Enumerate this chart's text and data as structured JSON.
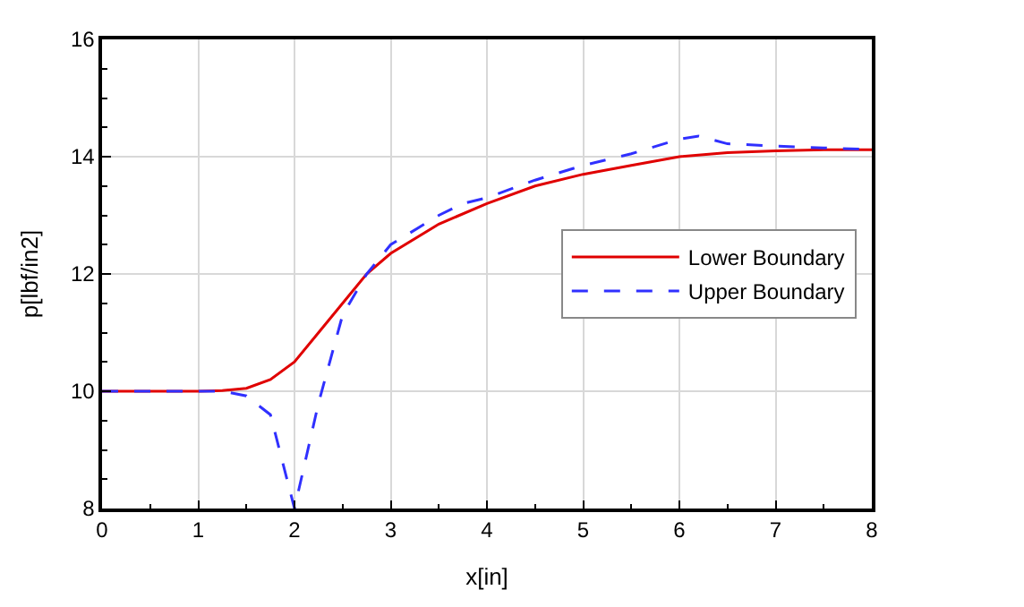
{
  "chart_data": {
    "type": "line",
    "xlabel": "x[in]",
    "ylabel": "p[lbf/in2]",
    "xlim": [
      0,
      8
    ],
    "ylim": [
      8,
      16
    ],
    "xticks": [
      0,
      1,
      2,
      3,
      4,
      5,
      6,
      7,
      8
    ],
    "yticks": [
      8,
      10,
      12,
      14,
      16
    ],
    "grid": true,
    "legend": "right",
    "series": [
      {
        "name": "Lower Boundary",
        "color": "#e00000",
        "line_style": "solid",
        "x": [
          0,
          1,
          1.25,
          1.5,
          1.75,
          2,
          2.25,
          2.5,
          2.75,
          3,
          3.5,
          4,
          4.5,
          5,
          5.5,
          6,
          6.5,
          7,
          7.5,
          8
        ],
        "values": [
          10,
          10,
          10.01,
          10.05,
          10.2,
          10.5,
          11.0,
          11.5,
          12.0,
          12.35,
          12.85,
          13.2,
          13.5,
          13.7,
          13.85,
          14.0,
          14.07,
          14.1,
          14.12,
          14.12
        ]
      },
      {
        "name": "Upper Boundary",
        "color": "#3030ff",
        "line_style": "dashed",
        "x": [
          0,
          1,
          1.25,
          1.5,
          1.75,
          2,
          2.25,
          2.5,
          2.75,
          3,
          3.5,
          3.75,
          4,
          4.5,
          5,
          5.5,
          6,
          6.2,
          6.5,
          7,
          7.5,
          8
        ],
        "values": [
          10,
          10,
          10.0,
          9.92,
          9.6,
          8.0,
          9.8,
          11.3,
          12.0,
          12.5,
          13.0,
          13.2,
          13.3,
          13.6,
          13.85,
          14.05,
          14.3,
          14.35,
          14.22,
          14.18,
          14.15,
          14.12
        ]
      }
    ]
  }
}
